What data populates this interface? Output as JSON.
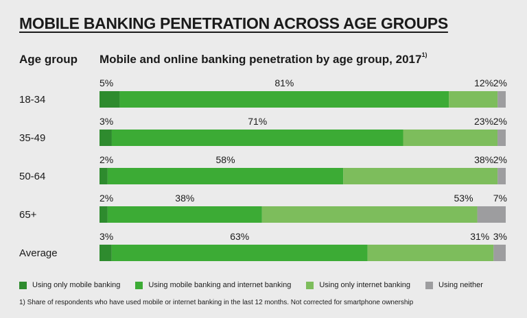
{
  "header": {
    "title": "MOBILE BANKING PENETRATION ACROSS AGE GROUPS",
    "age_group_label": "Age group",
    "subtitle": "Mobile and online banking penetration by age group, 2017",
    "subtitle_note": "1)"
  },
  "footnote": "1) Share of respondents who have used mobile or internet banking in the last 12 months. Not corrected for smartphone ownership",
  "colors": {
    "only_mobile": "#2e8b2e",
    "mobile_and_internet": "#3cab35",
    "only_internet": "#7dbd5c",
    "neither": "#9d9d9f"
  },
  "chart_data": {
    "type": "bar",
    "orientation": "horizontal",
    "stacked": true,
    "title": "Mobile and online banking penetration by age group, 2017",
    "categories": [
      "18-34",
      "35-49",
      "50-64",
      "65+",
      "Average"
    ],
    "series": [
      {
        "name": "Using only mobile banking",
        "color": "#2e8b2e",
        "values": [
          5,
          3,
          2,
          2,
          3
        ]
      },
      {
        "name": "Using mobile banking and internet banking",
        "color": "#3cab35",
        "values": [
          81,
          71,
          58,
          38,
          63
        ]
      },
      {
        "name": "Using only internet banking",
        "color": "#7dbd5c",
        "values": [
          12,
          23,
          38,
          53,
          31
        ]
      },
      {
        "name": "Using neither",
        "color": "#9d9d9f",
        "values": [
          2,
          2,
          2,
          7,
          3
        ]
      }
    ],
    "unit": "%",
    "xlim": [
      0,
      100
    ],
    "legend_position": "bottom",
    "grid": false
  }
}
